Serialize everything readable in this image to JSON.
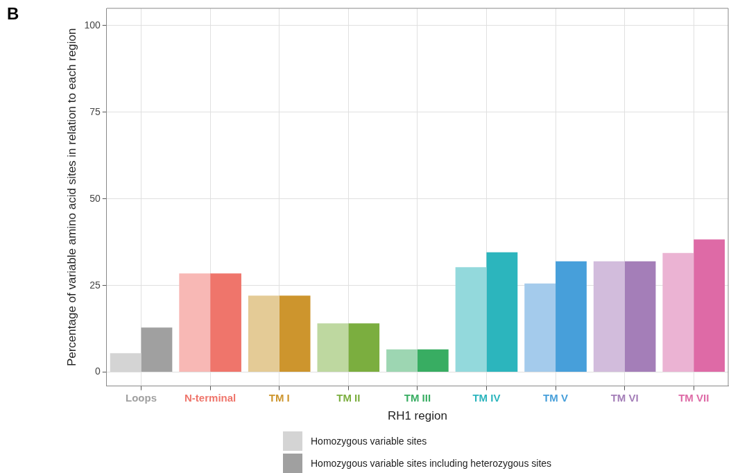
{
  "chart_data": {
    "type": "bar",
    "xlabel": "RH1 region",
    "ylabel": "Percentage of variable amino acid sites in relation to each region",
    "categories": [
      "Loops",
      "N-terminal",
      "TM I",
      "TM II",
      "TM III",
      "TM IV",
      "TM V",
      "TM VI",
      "TM VII"
    ],
    "series": [
      {
        "name": "Homozygous variable sites",
        "color": "#d4d4d4",
        "colors": [
          "#d4d4d4",
          "#f8b8b5",
          "#e4cb96",
          "#bed8a0",
          "#9dd6b2",
          "#93d9dc",
          "#a4cbec",
          "#d2bcdc",
          "#ebb3d3"
        ],
        "values": [
          5.5,
          28.5,
          22.1,
          14.1,
          6.6,
          30.3,
          25.6,
          32.0,
          34.4
        ]
      },
      {
        "name": "Homozygous variable sites including heterozygous sites",
        "color": "#a0a0a0",
        "colors": [
          "#a0a0a0",
          "#ef756b",
          "#cd952d",
          "#7bae3f",
          "#38ad62",
          "#2cb5bd",
          "#479fda",
          "#a47eb8",
          "#de6aa6"
        ],
        "values": [
          12.9,
          28.5,
          22.1,
          14.1,
          6.6,
          34.6,
          32.0,
          32.0,
          38.3
        ]
      }
    ],
    "ylim": [
      -4,
      105
    ],
    "yticks": [
      0,
      25,
      50,
      75,
      100
    ],
    "grid": true,
    "legend": "bottom",
    "annotations": [
      "B"
    ]
  }
}
